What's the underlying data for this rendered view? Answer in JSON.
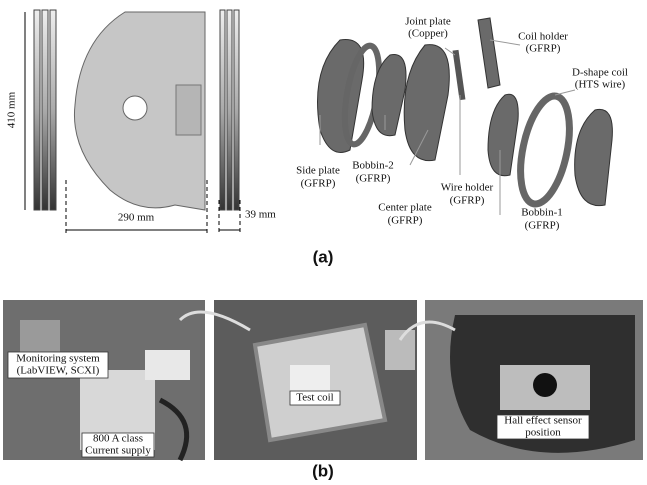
{
  "panel_a": {
    "caption": "(a)",
    "dimensions": {
      "height": "410 mm",
      "width": "290 mm",
      "thickness": "39 mm"
    },
    "labels": [
      {
        "lines": [
          "Joint plate",
          "(Copper)"
        ]
      },
      {
        "lines": [
          "Coil holder",
          "(GFRP)"
        ]
      },
      {
        "lines": [
          "D-shape coil",
          "(HTS wire)"
        ]
      },
      {
        "lines": [
          "Side plate",
          "(GFRP)"
        ]
      },
      {
        "lines": [
          "Bobbin-2",
          "(GFRP)"
        ]
      },
      {
        "lines": [
          "Center plate",
          "(GFRP)"
        ]
      },
      {
        "lines": [
          "Wire holder",
          "(GFRP)"
        ]
      },
      {
        "lines": [
          "Bobbin-1",
          "(GFRP)"
        ]
      }
    ]
  },
  "panel_b": {
    "caption": "(b)",
    "labels": [
      {
        "lines": [
          "Monitoring system",
          "(LabVIEW, SCXI)"
        ]
      },
      {
        "lines": [
          "800 A class",
          "Current supply"
        ]
      },
      {
        "lines": [
          "Test coil"
        ]
      },
      {
        "lines": [
          "Hall effect sensor",
          "position"
        ]
      }
    ]
  }
}
